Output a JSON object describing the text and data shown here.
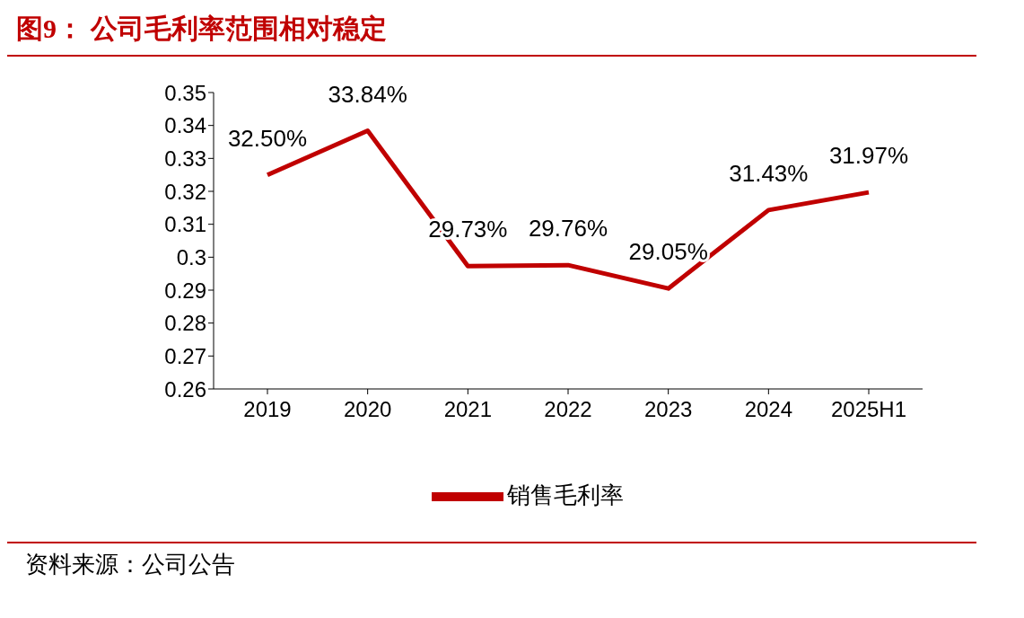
{
  "chart_data": {
    "type": "line",
    "title": "图9： 公司毛利率范围相对稳定",
    "annotations": [
      "资料来源：公司公告"
    ],
    "categories": [
      "2019",
      "2020",
      "2021",
      "2022",
      "2023",
      "2024",
      "2025H1"
    ],
    "series": [
      {
        "name": "销售毛利率",
        "color": "#c00000",
        "values": [
          0.325,
          0.3384,
          0.2973,
          0.2976,
          0.2905,
          0.3143,
          0.3197
        ],
        "value_labels": [
          "32.50%",
          "33.84%",
          "29.73%",
          "29.76%",
          "29.05%",
          "31.43%",
          "31.97%"
        ]
      }
    ],
    "ylim": [
      0.26,
      0.35
    ],
    "yticks": [
      0.26,
      0.27,
      0.28,
      0.29,
      0.3,
      0.31,
      0.32,
      0.33,
      0.34,
      0.35
    ],
    "grid": false,
    "legend": "bottom",
    "marker": "none",
    "line_style": "solid"
  }
}
